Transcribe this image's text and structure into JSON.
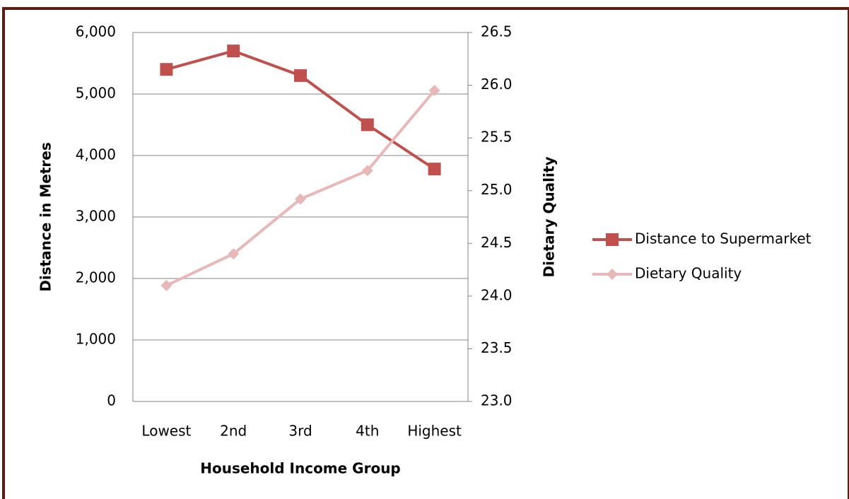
{
  "chart_data": {
    "type": "line",
    "categories": [
      "Lowest",
      "2nd",
      "3rd",
      "4th",
      "Highest"
    ],
    "xlabel": "Household Income Group",
    "ylabel": "Distance in Metres",
    "y2label": "Dietary Quality",
    "ylim": [
      0,
      6000
    ],
    "yticks": [
      0,
      {
        "value": 1000,
        "label": "1,000"
      },
      {
        "value": 2000,
        "label": "2,000"
      },
      {
        "value": 3000,
        "label": "3,000"
      },
      {
        "value": 4000,
        "label": "4,000"
      },
      {
        "value": 5000,
        "label": "5,000"
      },
      {
        "value": 6000,
        "label": "6,000"
      }
    ],
    "y2lim": [
      23,
      26.5
    ],
    "y2ticks": [
      {
        "value": 23,
        "label": "23.0"
      },
      23.5,
      {
        "value": 24,
        "label": "24.0"
      },
      24.5,
      {
        "value": 25,
        "label": "25.0"
      },
      25.5,
      {
        "value": 26,
        "label": "26.0"
      },
      26.5
    ],
    "grid": true,
    "legend": "right",
    "series": [
      {
        "name": "Distance to Supermarket",
        "color": "#c0504d",
        "marker": "square",
        "values": [
          5400,
          5700,
          5300,
          4500,
          3780
        ]
      },
      {
        "name": "Dietary Quality",
        "color": "#e6b9b8",
        "marker": "diamond",
        "axis": "y2",
        "values": [
          24.1,
          24.4,
          24.92,
          25.19,
          25.95
        ]
      }
    ]
  }
}
